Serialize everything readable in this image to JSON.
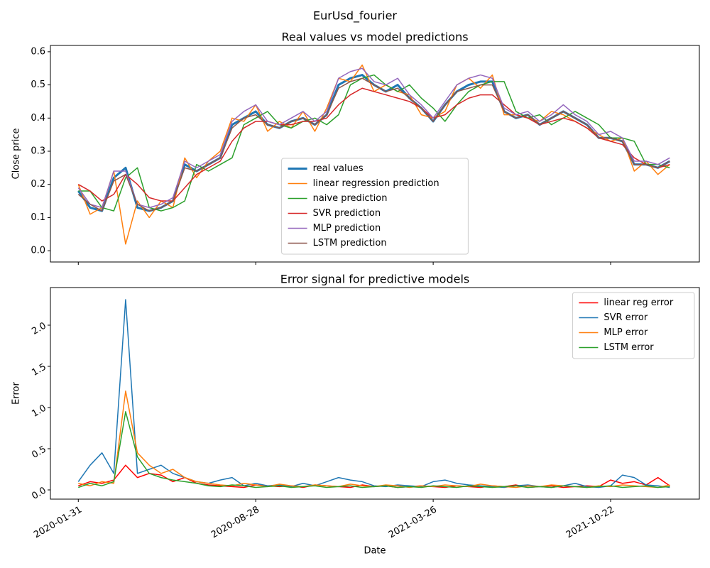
{
  "title": "EurUsd_fourier",
  "chart_data": [
    {
      "type": "line",
      "title": "Real values vs model predictions",
      "y_label": "Close price",
      "x": [
        "2020-01-31",
        "2020-02-14",
        "2020-02-28",
        "2020-03-13",
        "2020-03-27",
        "2020-04-10",
        "2020-04-24",
        "2020-05-08",
        "2020-05-22",
        "2020-06-05",
        "2020-06-19",
        "2020-07-03",
        "2020-07-17",
        "2020-07-31",
        "2020-08-14",
        "2020-08-28",
        "2020-09-11",
        "2020-09-25",
        "2020-10-09",
        "2020-10-23",
        "2020-11-06",
        "2020-11-20",
        "2020-12-04",
        "2020-12-18",
        "2021-01-01",
        "2021-01-15",
        "2021-01-29",
        "2021-02-12",
        "2021-02-26",
        "2021-03-12",
        "2021-03-26",
        "2021-04-09",
        "2021-04-23",
        "2021-05-07",
        "2021-05-21",
        "2021-06-04",
        "2021-06-18",
        "2021-07-02",
        "2021-07-16",
        "2021-07-30",
        "2021-08-13",
        "2021-08-27",
        "2021-09-10",
        "2021-09-24",
        "2021-10-08",
        "2021-10-22",
        "2021-11-05",
        "2021-11-19",
        "2021-12-03",
        "2021-12-17",
        "2021-12-31"
      ],
      "xlim": [
        "2019-12-29",
        "2022-02-04"
      ],
      "ylim": [
        -0.034,
        0.619
      ],
      "yticks": [
        {
          "value": 0,
          "label": "0.0"
        },
        0.1,
        0.2,
        0.3,
        0.4,
        0.5,
        0.6
      ],
      "legend": "lower center",
      "series": [
        {
          "name": "real values",
          "color": "#1f77b4",
          "width": 3,
          "values": [
            0.18,
            0.13,
            0.12,
            0.22,
            0.25,
            0.13,
            0.12,
            0.13,
            0.15,
            0.26,
            0.24,
            0.26,
            0.28,
            0.38,
            0.4,
            0.42,
            0.38,
            0.37,
            0.39,
            0.4,
            0.38,
            0.41,
            0.5,
            0.52,
            0.53,
            0.5,
            0.48,
            0.5,
            0.46,
            0.43,
            0.39,
            0.44,
            0.48,
            0.5,
            0.51,
            0.51,
            0.42,
            0.4,
            0.41,
            0.38,
            0.4,
            0.42,
            0.4,
            0.38,
            0.34,
            0.34,
            0.33,
            0.26,
            0.26,
            0.25,
            0.27
          ]
        },
        {
          "name": "linear regression prediction",
          "color": "#ff7f0e",
          "width": 1.5,
          "values": [
            0.2,
            0.11,
            0.13,
            0.24,
            0.02,
            0.15,
            0.1,
            0.15,
            0.13,
            0.28,
            0.22,
            0.27,
            0.3,
            0.4,
            0.39,
            0.44,
            0.36,
            0.39,
            0.37,
            0.42,
            0.36,
            0.43,
            0.52,
            0.51,
            0.56,
            0.48,
            0.5,
            0.48,
            0.47,
            0.41,
            0.4,
            0.42,
            0.5,
            0.52,
            0.49,
            0.53,
            0.41,
            0.41,
            0.4,
            0.39,
            0.42,
            0.41,
            0.39,
            0.37,
            0.35,
            0.33,
            0.34,
            0.24,
            0.27,
            0.23,
            0.26
          ]
        },
        {
          "name": "naive prediction",
          "color": "#2ca02c",
          "width": 1.5,
          "values": [
            0.18,
            0.18,
            0.13,
            0.12,
            0.22,
            0.25,
            0.13,
            0.12,
            0.13,
            0.15,
            0.26,
            0.24,
            0.26,
            0.28,
            0.38,
            0.4,
            0.42,
            0.38,
            0.37,
            0.39,
            0.4,
            0.38,
            0.41,
            0.5,
            0.52,
            0.53,
            0.5,
            0.48,
            0.5,
            0.46,
            0.43,
            0.39,
            0.44,
            0.48,
            0.5,
            0.51,
            0.51,
            0.42,
            0.4,
            0.41,
            0.38,
            0.4,
            0.42,
            0.4,
            0.38,
            0.34,
            0.34,
            0.33,
            0.26,
            0.26,
            0.25
          ]
        },
        {
          "name": "SVR prediction",
          "color": "#d62728",
          "width": 1.5,
          "values": [
            0.2,
            0.18,
            0.15,
            0.17,
            0.23,
            0.2,
            0.16,
            0.15,
            0.15,
            0.19,
            0.23,
            0.25,
            0.27,
            0.33,
            0.37,
            0.39,
            0.39,
            0.38,
            0.38,
            0.39,
            0.39,
            0.4,
            0.44,
            0.47,
            0.49,
            0.48,
            0.47,
            0.46,
            0.45,
            0.43,
            0.4,
            0.41,
            0.44,
            0.46,
            0.47,
            0.47,
            0.44,
            0.41,
            0.4,
            0.38,
            0.39,
            0.4,
            0.39,
            0.37,
            0.34,
            0.33,
            0.32,
            0.28,
            0.26,
            0.25,
            0.26
          ]
        },
        {
          "name": "MLP prediction",
          "color": "#9467bd",
          "width": 1.5,
          "values": [
            0.19,
            0.14,
            0.13,
            0.24,
            0.24,
            0.14,
            0.13,
            0.14,
            0.16,
            0.27,
            0.25,
            0.27,
            0.29,
            0.39,
            0.42,
            0.44,
            0.39,
            0.38,
            0.4,
            0.42,
            0.39,
            0.42,
            0.52,
            0.54,
            0.55,
            0.51,
            0.5,
            0.52,
            0.47,
            0.44,
            0.4,
            0.45,
            0.5,
            0.52,
            0.53,
            0.52,
            0.43,
            0.41,
            0.42,
            0.39,
            0.41,
            0.44,
            0.41,
            0.39,
            0.35,
            0.36,
            0.34,
            0.27,
            0.27,
            0.26,
            0.28
          ]
        },
        {
          "name": "LSTM prediction",
          "color": "#8c564b",
          "width": 1.5,
          "values": [
            0.17,
            0.14,
            0.12,
            0.21,
            0.23,
            0.14,
            0.12,
            0.13,
            0.15,
            0.25,
            0.24,
            0.26,
            0.28,
            0.37,
            0.4,
            0.41,
            0.38,
            0.37,
            0.39,
            0.4,
            0.38,
            0.41,
            0.49,
            0.51,
            0.52,
            0.5,
            0.48,
            0.49,
            0.46,
            0.43,
            0.39,
            0.44,
            0.48,
            0.49,
            0.5,
            0.5,
            0.42,
            0.4,
            0.41,
            0.38,
            0.4,
            0.42,
            0.4,
            0.38,
            0.34,
            0.34,
            0.33,
            0.26,
            0.26,
            0.25,
            0.27
          ]
        }
      ]
    },
    {
      "type": "line",
      "title": "Error signal for predictive models",
      "x_label": "Date",
      "y_label": "Error",
      "x": [
        "2020-01-31",
        "2020-02-14",
        "2020-02-28",
        "2020-03-13",
        "2020-03-27",
        "2020-04-10",
        "2020-04-24",
        "2020-05-08",
        "2020-05-22",
        "2020-06-05",
        "2020-06-19",
        "2020-07-03",
        "2020-07-17",
        "2020-07-31",
        "2020-08-14",
        "2020-08-28",
        "2020-09-11",
        "2020-09-25",
        "2020-10-09",
        "2020-10-23",
        "2020-11-06",
        "2020-11-20",
        "2020-12-04",
        "2020-12-18",
        "2021-01-01",
        "2021-01-15",
        "2021-01-29",
        "2021-02-12",
        "2021-02-26",
        "2021-03-12",
        "2021-03-26",
        "2021-04-09",
        "2021-04-23",
        "2021-05-07",
        "2021-05-21",
        "2021-06-04",
        "2021-06-18",
        "2021-07-02",
        "2021-07-16",
        "2021-07-30",
        "2021-08-13",
        "2021-08-27",
        "2021-09-10",
        "2021-09-24",
        "2021-10-08",
        "2021-10-22",
        "2021-11-05",
        "2021-11-19",
        "2021-12-03",
        "2021-12-17",
        "2021-12-31"
      ],
      "xlim": [
        "2019-12-29",
        "2022-02-04"
      ],
      "xticks": [
        "2020-01-31",
        "2020-08-28",
        "2021-03-26",
        "2021-10-22"
      ],
      "ylim": [
        -0.112,
        2.457
      ],
      "yticks": [
        {
          "value": 0,
          "label": "0.0"
        },
        0.5,
        {
          "value": 1,
          "label": "1.0"
        },
        1.5,
        {
          "value": 2,
          "label": "2.0"
        }
      ],
      "legend": "upper right",
      "series": [
        {
          "name": "linear reg error",
          "color": "#ff0000",
          "width": 1.5,
          "values": [
            0.05,
            0.1,
            0.08,
            0.12,
            0.3,
            0.15,
            0.2,
            0.18,
            0.1,
            0.15,
            0.08,
            0.06,
            0.05,
            0.04,
            0.03,
            0.06,
            0.05,
            0.04,
            0.05,
            0.03,
            0.06,
            0.05,
            0.04,
            0.03,
            0.06,
            0.04,
            0.05,
            0.03,
            0.04,
            0.05,
            0.04,
            0.03,
            0.05,
            0.04,
            0.03,
            0.05,
            0.04,
            0.06,
            0.03,
            0.04,
            0.05,
            0.03,
            0.04,
            0.05,
            0.04,
            0.12,
            0.08,
            0.1,
            0.06,
            0.15,
            0.05
          ]
        },
        {
          "name": "SVR error",
          "color": "#1f77b4",
          "width": 1.5,
          "values": [
            0.1,
            0.3,
            0.45,
            0.2,
            2.31,
            0.2,
            0.25,
            0.3,
            0.2,
            0.15,
            0.1,
            0.08,
            0.12,
            0.15,
            0.05,
            0.08,
            0.05,
            0.06,
            0.04,
            0.08,
            0.05,
            0.1,
            0.15,
            0.12,
            0.1,
            0.05,
            0.04,
            0.06,
            0.05,
            0.04,
            0.1,
            0.12,
            0.08,
            0.06,
            0.05,
            0.04,
            0.03,
            0.05,
            0.06,
            0.04,
            0.03,
            0.05,
            0.08,
            0.04,
            0.03,
            0.05,
            0.18,
            0.15,
            0.06,
            0.05,
            0.03
          ]
        },
        {
          "name": "MLP error",
          "color": "#ff7f0e",
          "width": 1.5,
          "values": [
            0.08,
            0.05,
            0.1,
            0.08,
            1.2,
            0.45,
            0.3,
            0.2,
            0.25,
            0.15,
            0.1,
            0.08,
            0.06,
            0.05,
            0.08,
            0.06,
            0.04,
            0.07,
            0.05,
            0.04,
            0.06,
            0.05,
            0.04,
            0.07,
            0.05,
            0.04,
            0.06,
            0.05,
            0.03,
            0.05,
            0.04,
            0.06,
            0.05,
            0.04,
            0.07,
            0.05,
            0.04,
            0.03,
            0.05,
            0.04,
            0.06,
            0.05,
            0.04,
            0.03,
            0.05,
            0.04,
            0.06,
            0.05,
            0.04,
            0.03,
            0.06
          ]
        },
        {
          "name": "LSTM error",
          "color": "#2ca02c",
          "width": 1.5,
          "values": [
            0.03,
            0.08,
            0.05,
            0.1,
            0.95,
            0.4,
            0.2,
            0.15,
            0.12,
            0.1,
            0.08,
            0.05,
            0.04,
            0.06,
            0.05,
            0.03,
            0.04,
            0.05,
            0.03,
            0.04,
            0.05,
            0.03,
            0.04,
            0.05,
            0.03,
            0.04,
            0.05,
            0.03,
            0.04,
            0.03,
            0.05,
            0.04,
            0.03,
            0.05,
            0.04,
            0.03,
            0.04,
            0.05,
            0.03,
            0.04,
            0.03,
            0.05,
            0.04,
            0.03,
            0.04,
            0.05,
            0.03,
            0.04,
            0.05,
            0.03,
            0.04
          ]
        }
      ]
    }
  ]
}
